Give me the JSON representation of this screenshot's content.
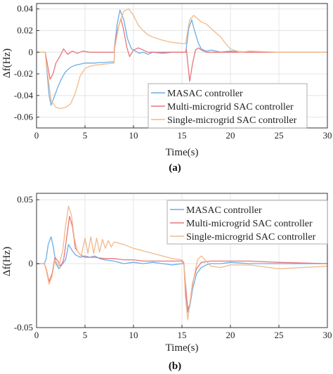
{
  "colors": {
    "masac": "#6aaee8",
    "multi": "#e8767a",
    "single": "#f2b98a"
  },
  "chart_data": [
    {
      "type": "line",
      "panel_label": "(a)",
      "xlabel": "Time(s)",
      "ylabel": "Δf(Hz)",
      "xlim": [
        0,
        30
      ],
      "ylim": [
        -0.07,
        0.045
      ],
      "xticks": [
        0,
        5,
        10,
        15,
        20,
        25,
        30
      ],
      "yticks": [
        0.04,
        0.02,
        0,
        -0.02,
        -0.04,
        -0.06
      ],
      "ytick_labels": [
        "0.04",
        "0.02",
        "0",
        "-0.02",
        "-0.04",
        "-0.06"
      ],
      "grid": true,
      "legend_position": "lower-right",
      "series": [
        {
          "name": "MASAC controller",
          "color_key": "masac",
          "x": [
            0,
            0.9,
            1.0,
            1.3,
            1.5,
            1.8,
            2.2,
            2.6,
            3.0,
            3.5,
            4.0,
            4.5,
            5.0,
            5.5,
            6.0,
            6.5,
            7.0,
            7.5,
            8.0,
            8.05,
            8.3,
            8.6,
            9.0,
            9.4,
            9.8,
            10.2,
            10.6,
            11.0,
            11.5,
            12.0,
            13.0,
            14.0,
            15.0,
            15.4,
            15.45,
            15.7,
            16.0,
            16.3,
            16.7,
            17.0,
            17.5,
            18.0,
            19.0,
            20.0,
            22.0,
            25.0,
            30.0
          ],
          "y": [
            0,
            0,
            -0.01,
            -0.04,
            -0.049,
            -0.042,
            -0.032,
            -0.024,
            -0.018,
            -0.014,
            -0.012,
            -0.011,
            -0.01,
            -0.01,
            -0.01,
            -0.0095,
            -0.0095,
            -0.009,
            -0.009,
            0.005,
            0.025,
            0.039,
            0.03,
            0.012,
            0.003,
            0.001,
            -0.001,
            0.0,
            -0.002,
            0.0,
            -0.001,
            0.0,
            0.0,
            0.0,
            0.004,
            0.022,
            0.03,
            0.02,
            0.008,
            0.003,
            0.001,
            0.002,
            0.0,
            0.001,
            0.0,
            0.0,
            0.0
          ]
        },
        {
          "name": "Multi-microgrid SAC controller",
          "color_key": "multi",
          "x": [
            0,
            0.9,
            1.0,
            1.4,
            1.7,
            2.0,
            2.4,
            2.8,
            3.2,
            3.7,
            4.2,
            4.8,
            5.5,
            6.5,
            7.5,
            8.0,
            8.05,
            8.4,
            8.7,
            9.0,
            9.3,
            9.6,
            10.0,
            10.5,
            11.0,
            11.5,
            12.0,
            13.0,
            14.0,
            15.0,
            15.4,
            15.45,
            15.8,
            16.1,
            16.4,
            16.7,
            17.0,
            17.5,
            18.0,
            19.0,
            20.0,
            22.0,
            25.0,
            30.0
          ],
          "y": [
            0,
            0,
            -0.005,
            -0.025,
            -0.02,
            -0.01,
            -0.004,
            0.003,
            -0.002,
            0.001,
            -0.001,
            0.001,
            0.0,
            0.0,
            0.0,
            0.0,
            0.005,
            0.022,
            0.031,
            0.02,
            0.005,
            -0.004,
            0.002,
            0.004,
            0.002,
            0.0,
            0.0,
            0.0,
            0.0,
            0.0,
            0.0,
            0.003,
            -0.027,
            -0.01,
            0.002,
            0.004,
            0.002,
            0.0,
            0.0,
            0.0,
            0.0,
            0.0,
            0.0,
            0.0
          ]
        },
        {
          "name": "Single-microgrid SAC controller",
          "color_key": "single",
          "x": [
            0,
            0.9,
            1.0,
            1.5,
            2.0,
            2.5,
            3.0,
            3.5,
            4.0,
            4.5,
            5.0,
            5.5,
            6.0,
            7.0,
            8.0,
            8.05,
            8.5,
            9.0,
            9.5,
            10.0,
            10.5,
            11.0,
            11.5,
            12.0,
            13.0,
            14.0,
            15.0,
            15.4,
            15.45,
            15.8,
            16.2,
            16.6,
            17.0,
            17.5,
            18.0,
            18.5,
            19.0,
            19.5,
            20.0,
            21.0,
            22.0,
            25.0,
            30.0
          ],
          "y": [
            0,
            0,
            -0.01,
            -0.045,
            -0.051,
            -0.052,
            -0.051,
            -0.048,
            -0.038,
            -0.022,
            -0.015,
            -0.013,
            -0.012,
            -0.011,
            -0.01,
            0.003,
            0.025,
            0.038,
            0.04,
            0.034,
            0.025,
            0.02,
            0.016,
            0.014,
            0.011,
            0.009,
            0.008,
            0.008,
            0.012,
            0.03,
            0.034,
            0.031,
            0.028,
            0.026,
            0.022,
            0.018,
            0.014,
            0.008,
            0.003,
            0.0,
            0.001,
            0.0,
            0.0
          ]
        }
      ]
    },
    {
      "type": "line",
      "panel_label": "(b)",
      "xlabel": "Time(s)",
      "ylabel": "Δf(Hz)",
      "xlim": [
        0,
        30
      ],
      "ylim": [
        -0.05,
        0.055
      ],
      "xticks": [
        0,
        5,
        10,
        15,
        20,
        25,
        30
      ],
      "yticks": [
        0.05,
        0,
        -0.05
      ],
      "ytick_labels": [
        "0.05",
        "0",
        "-0.05"
      ],
      "grid": true,
      "legend_position": "upper-right",
      "series": [
        {
          "name": "MASAC controller",
          "color_key": "masac",
          "x": [
            0,
            0.8,
            1.0,
            1.2,
            1.5,
            1.7,
            2.0,
            2.3,
            2.6,
            3.0,
            3.3,
            3.7,
            4.0,
            4.5,
            5.0,
            5.5,
            6.0,
            6.5,
            7.0,
            8.0,
            9.0,
            10.0,
            11.0,
            12.0,
            13.0,
            14.0,
            15.0,
            15.2,
            15.35,
            15.6,
            15.8,
            16.1,
            16.5,
            17.0,
            17.5,
            18.0,
            19.0,
            20.0,
            22.0,
            25.0,
            30.0
          ],
          "y": [
            0,
            0,
            0.004,
            0.015,
            0.021,
            0.014,
            0.0,
            -0.004,
            -0.001,
            0.003,
            0.015,
            0.01,
            0.007,
            0.005,
            0.006,
            0.005,
            0.006,
            0.004,
            0.003,
            0.002,
            0.0,
            0.001,
            0.0,
            0.001,
            0.0,
            -0.001,
            0.0,
            0.0,
            -0.02,
            -0.038,
            -0.034,
            -0.02,
            -0.008,
            -0.003,
            -0.001,
            0.0,
            0.0,
            0.001,
            0.0,
            0.0,
            0.0
          ]
        },
        {
          "name": "Multi-microgrid SAC controller",
          "color_key": "multi",
          "x": [
            0,
            0.8,
            1.0,
            1.3,
            1.6,
            1.9,
            2.2,
            2.5,
            2.8,
            3.1,
            3.4,
            3.7,
            4.0,
            4.5,
            5.0,
            6.0,
            7.0,
            8.0,
            9.0,
            10.0,
            11.0,
            12.0,
            13.0,
            14.0,
            15.0,
            15.2,
            15.35,
            15.6,
            15.8,
            16.1,
            16.5,
            17.0,
            18.0,
            19.0,
            20.0,
            22.0,
            25.0,
            30.0
          ],
          "y": [
            0,
            0,
            -0.004,
            -0.014,
            -0.008,
            0.005,
            0.002,
            -0.002,
            0.003,
            0.02,
            0.037,
            0.029,
            0.012,
            0.007,
            0.005,
            0.005,
            0.004,
            0.004,
            0.003,
            0.003,
            0.002,
            0.002,
            0.002,
            0.002,
            0.002,
            0.0,
            -0.015,
            -0.036,
            -0.032,
            -0.015,
            -0.004,
            0.001,
            0.002,
            0.002,
            0.002,
            0.002,
            0.001,
            0.0
          ]
        },
        {
          "name": "Single-microgrid SAC controller",
          "color_key": "single",
          "x": [
            0,
            0.8,
            1.0,
            1.3,
            1.6,
            1.9,
            2.3,
            2.7,
            3.0,
            3.3,
            3.6,
            3.9,
            4.2,
            4.6,
            5.0,
            5.3,
            5.6,
            5.9,
            6.2,
            6.5,
            6.8,
            7.1,
            7.4,
            7.7,
            8.0,
            9.0,
            10.0,
            11.0,
            12.0,
            13.0,
            14.0,
            15.0,
            15.2,
            15.35,
            15.6,
            15.8,
            16.2,
            16.6,
            17.0,
            17.5,
            18.0,
            19.0,
            20.0,
            22.0,
            25.0,
            30.0
          ],
          "y": [
            0,
            0,
            -0.005,
            -0.016,
            -0.01,
            0.003,
            -0.002,
            0.01,
            0.03,
            0.045,
            0.038,
            0.02,
            0.01,
            0.006,
            0.02,
            0.008,
            0.021,
            0.008,
            0.02,
            0.009,
            0.019,
            0.012,
            0.018,
            0.013,
            0.017,
            0.015,
            0.012,
            0.01,
            0.008,
            0.006,
            0.004,
            0.003,
            0.001,
            -0.025,
            -0.044,
            -0.032,
            -0.012,
            0.003,
            0.006,
            0.002,
            -0.002,
            -0.003,
            -0.001,
            -0.001,
            -0.004,
            -0.002
          ]
        }
      ]
    }
  ]
}
